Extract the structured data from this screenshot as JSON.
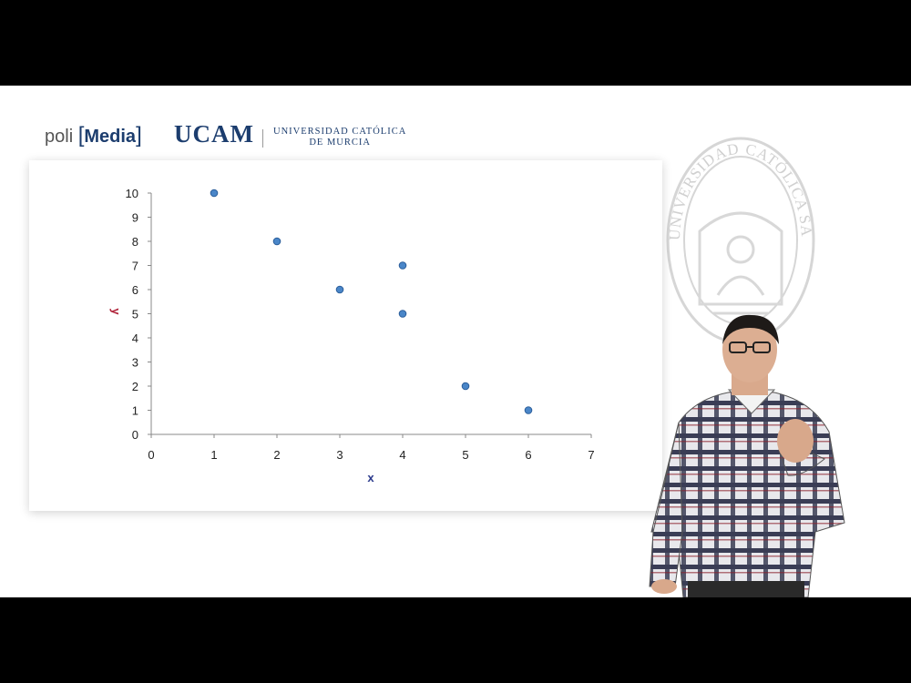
{
  "branding": {
    "poli_prefix": "poli",
    "poli_bracket_open": "[",
    "poli_media": "Media",
    "poli_bracket_close": "]",
    "ucam": "UCAM",
    "university_line1": "Universidad Católica",
    "university_line2": "de Murcia",
    "seal_ring_text": "UNIVERSIDAD CATÓLICA SAN ANTONIO"
  },
  "colors": {
    "point": "#4a86c8",
    "point_stroke": "#2a5d9a",
    "x_label": "#2b3a8c",
    "y_label": "#b0243a"
  },
  "chart_data": {
    "type": "scatter",
    "title": "",
    "xlabel": "x",
    "ylabel": "y",
    "xlim": [
      0,
      7
    ],
    "ylim": [
      0,
      10
    ],
    "x_ticks": [
      0,
      1,
      2,
      3,
      4,
      5,
      6,
      7
    ],
    "y_ticks": [
      0,
      1,
      2,
      3,
      4,
      5,
      6,
      7,
      8,
      9,
      10
    ],
    "grid": false,
    "series": [
      {
        "points": [
          {
            "x": 1,
            "y": 10
          },
          {
            "x": 2,
            "y": 8
          },
          {
            "x": 3,
            "y": 6
          },
          {
            "x": 4,
            "y": 7
          },
          {
            "x": 4,
            "y": 5
          },
          {
            "x": 5,
            "y": 2
          },
          {
            "x": 6,
            "y": 1
          }
        ]
      }
    ]
  }
}
